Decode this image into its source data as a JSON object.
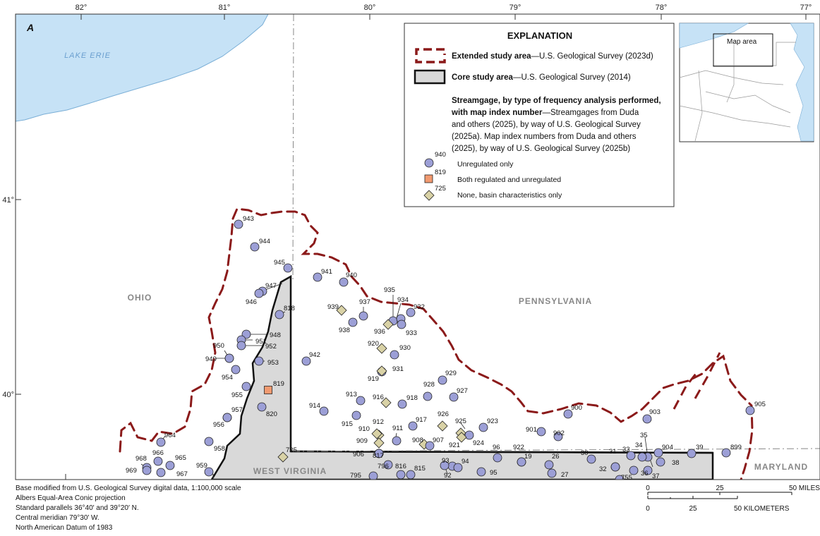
{
  "panel_label": "A",
  "lake_label": "LAKE ERIE",
  "state_labels": {
    "ohio": "OHIO",
    "pennsylvania": "PENNSYLVANIA",
    "west_virginia": "WEST VIRGINIA",
    "maryland": "MARYLAND"
  },
  "longitude_labels": [
    "82°",
    "81°",
    "80°",
    "79°",
    "78°",
    "77°"
  ],
  "latitude_labels": [
    "41°",
    "40°"
  ],
  "explanation": {
    "title": "EXPLANATION",
    "extended_bold": "Extended study area",
    "extended_rest": "—U.S. Geological Survey (2023d)",
    "core_bold": "Core study area",
    "core_rest": "—U.S. Geological Survey (2014)",
    "stream_line1": "Streamgage, by type of frequency analysis performed,",
    "stream_line2_bold": "with map index number",
    "stream_line2_rest": "—Streamgages from Duda",
    "stream_line3": "and others (2025), by way of U.S. Geological Survey",
    "stream_line4": "(2025a). Map index numbers from Duda and others",
    "stream_line5": "(2025), by way of U.S. Geological Survey (2025b)",
    "unregulated_num": "940",
    "unregulated_label": "Unregulated only",
    "both_num": "819",
    "both_label": "Both regulated and unregulated",
    "none_num": "725",
    "none_label": "None, basin characteristics only"
  },
  "inset": {
    "label": "Map area"
  },
  "colors": {
    "lake": "#c6e2f6",
    "core_area": "#d9d9d9",
    "extended_boundary": "#8b1a1a",
    "gage_unregulated": "#9c9fd6",
    "gage_both": "#f29a70",
    "gage_none": "#d9d2a6"
  },
  "footer": {
    "line1": "Base modified from U.S. Geological Survey digital data, 1:100,000 scale",
    "line2": "Albers Equal-Area Conic projection",
    "line3": "Standard parallels 36°40′ and 39°20′ N.",
    "line4": "Central meridian 79°30′ W.",
    "line5": "North American Datum of 1983"
  },
  "scale": {
    "miles_ticks": [
      "0",
      "25",
      "50 MILES"
    ],
    "km_ticks": [
      "0",
      "25",
      "50 KILOMETERS"
    ],
    "km_inner": [
      "0",
      "25"
    ]
  },
  "gages": [
    {
      "id": "943",
      "type": "unregulated"
    },
    {
      "id": "944",
      "type": "unregulated"
    },
    {
      "id": "945",
      "type": "unregulated"
    },
    {
      "id": "941",
      "type": "unregulated"
    },
    {
      "id": "940",
      "type": "unregulated"
    },
    {
      "id": "947",
      "type": "unregulated"
    },
    {
      "id": "946",
      "type": "unregulated"
    },
    {
      "id": "818",
      "type": "unregulated"
    },
    {
      "id": "937",
      "type": "unregulated"
    },
    {
      "id": "938",
      "type": "unregulated"
    },
    {
      "id": "935",
      "type": "unregulated"
    },
    {
      "id": "934",
      "type": "unregulated"
    },
    {
      "id": "932",
      "type": "unregulated"
    },
    {
      "id": "933",
      "type": "unregulated"
    },
    {
      "id": "936",
      "type": "none"
    },
    {
      "id": "939",
      "type": "none"
    },
    {
      "id": "948",
      "type": "unregulated"
    },
    {
      "id": "951",
      "type": "unregulated"
    },
    {
      "id": "952",
      "type": "unregulated"
    },
    {
      "id": "950",
      "type": "unregulated"
    },
    {
      "id": "949",
      "type": "unregulated"
    },
    {
      "id": "953",
      "type": "unregulated"
    },
    {
      "id": "954",
      "type": "unregulated"
    },
    {
      "id": "942",
      "type": "unregulated"
    },
    {
      "id": "920",
      "type": "none"
    },
    {
      "id": "930",
      "type": "unregulated"
    },
    {
      "id": "931",
      "type": "unregulated"
    },
    {
      "id": "919",
      "type": "none"
    },
    {
      "id": "929",
      "type": "unregulated"
    },
    {
      "id": "928",
      "type": "unregulated"
    },
    {
      "id": "927",
      "type": "unregulated"
    },
    {
      "id": "955",
      "type": "unregulated"
    },
    {
      "id": "819",
      "type": "both"
    },
    {
      "id": "820",
      "type": "unregulated"
    },
    {
      "id": "957",
      "type": "unregulated"
    },
    {
      "id": "956",
      "type": "unregulated"
    },
    {
      "id": "914",
      "type": "unregulated"
    },
    {
      "id": "913",
      "type": "unregulated"
    },
    {
      "id": "916",
      "type": "none"
    },
    {
      "id": "918",
      "type": "unregulated"
    },
    {
      "id": "915",
      "type": "unregulated"
    },
    {
      "id": "917",
      "type": "unregulated"
    },
    {
      "id": "926",
      "type": "none"
    },
    {
      "id": "925",
      "type": "none"
    },
    {
      "id": "923",
      "type": "unregulated"
    },
    {
      "id": "912",
      "type": "none"
    },
    {
      "id": "911",
      "type": "unregulated"
    },
    {
      "id": "910",
      "type": "none"
    },
    {
      "id": "909",
      "type": "none"
    },
    {
      "id": "908",
      "type": "none"
    },
    {
      "id": "907",
      "type": "unregulated"
    },
    {
      "id": "924",
      "type": "unregulated"
    },
    {
      "id": "921",
      "type": "none"
    },
    {
      "id": "906",
      "type": "unregulated"
    },
    {
      "id": "817",
      "type": "unregulated"
    },
    {
      "id": "900",
      "type": "unregulated"
    },
    {
      "id": "903",
      "type": "unregulated"
    },
    {
      "id": "901",
      "type": "unregulated"
    },
    {
      "id": "902",
      "type": "unregulated"
    },
    {
      "id": "905",
      "type": "unregulated"
    },
    {
      "id": "96",
      "type": "unregulated"
    },
    {
      "id": "922",
      "type": "unregulated"
    },
    {
      "id": "19",
      "type": "unregulated"
    },
    {
      "id": "30",
      "type": "unregulated"
    },
    {
      "id": "31",
      "type": "unregulated"
    },
    {
      "id": "33",
      "type": "unregulated"
    },
    {
      "id": "35",
      "type": "unregulated"
    },
    {
      "id": "34",
      "type": "unregulated"
    },
    {
      "id": "904",
      "type": "unregulated"
    },
    {
      "id": "39",
      "type": "unregulated"
    },
    {
      "id": "899",
      "type": "unregulated"
    },
    {
      "id": "38",
      "type": "unregulated"
    },
    {
      "id": "26",
      "type": "unregulated"
    },
    {
      "id": "27",
      "type": "unregulated"
    },
    {
      "id": "32",
      "type": "unregulated"
    },
    {
      "id": "755",
      "type": "unregulated"
    },
    {
      "id": "36",
      "type": "unregulated"
    },
    {
      "id": "37",
      "type": "unregulated"
    },
    {
      "id": "93",
      "type": "unregulated"
    },
    {
      "id": "94",
      "type": "unregulated"
    },
    {
      "id": "92",
      "type": "unregulated"
    },
    {
      "id": "95",
      "type": "unregulated"
    },
    {
      "id": "796",
      "type": "unregulated"
    },
    {
      "id": "816",
      "type": "unregulated"
    },
    {
      "id": "815",
      "type": "unregulated"
    },
    {
      "id": "795",
      "type": "unregulated"
    },
    {
      "id": "725",
      "type": "none"
    },
    {
      "id": "958",
      "type": "unregulated"
    },
    {
      "id": "959",
      "type": "unregulated"
    },
    {
      "id": "964",
      "type": "unregulated"
    },
    {
      "id": "965",
      "type": "unregulated"
    },
    {
      "id": "966",
      "type": "unregulated"
    },
    {
      "id": "967",
      "type": "unregulated"
    },
    {
      "id": "968",
      "type": "unregulated"
    },
    {
      "id": "969",
      "type": "unregulated"
    }
  ]
}
